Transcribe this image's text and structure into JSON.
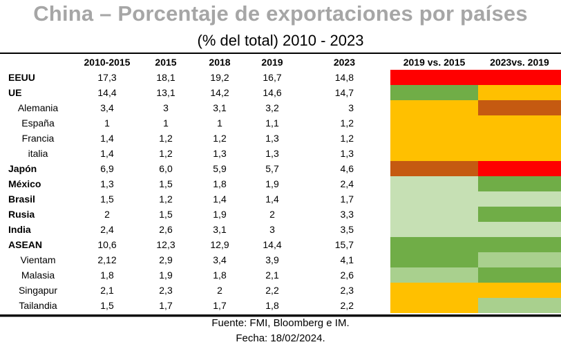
{
  "title": "China – Porcentaje de exportaciones por países",
  "subtitle": "(% del total) 2010 - 2023",
  "columns": [
    "",
    "2010-2015",
    "2015",
    "2018",
    "2019",
    "2023",
    "",
    "2019 vs. 2015",
    "2023vs. 2019"
  ],
  "colors": {
    "red": "#ff0000",
    "brown": "#c55a11",
    "amber": "#ffc000",
    "green": "#70ad47",
    "light_green": "#a9d08e",
    "pale_green": "#c6e0b4"
  },
  "chart_data": {
    "type": "table",
    "title": "China – Porcentaje de exportaciones por países",
    "subtitle": "(% del total) 2010 - 2023",
    "columns": [
      "2010-2015",
      "2015",
      "2018",
      "2019",
      "2023",
      "2019 vs. 2015",
      "2023vs. 2019"
    ],
    "rows": [
      {
        "label": "EEUU",
        "bold": true,
        "values": [
          "17,3",
          "18,1",
          "19,2",
          "16,7",
          "14,8"
        ],
        "flag_2019_vs_2015": "red",
        "flag_2023_vs_2019": "red"
      },
      {
        "label": "UE",
        "bold": true,
        "values": [
          "14,4",
          "13,1",
          "14,2",
          "14,6",
          "14,7"
        ],
        "flag_2019_vs_2015": "green",
        "flag_2023_vs_2019": "amber"
      },
      {
        "label": "Alemania",
        "bold": false,
        "values": [
          "3,4",
          "3",
          "3,1",
          "3,2",
          "3"
        ],
        "flag_2019_vs_2015": "amber",
        "flag_2023_vs_2019": "brown"
      },
      {
        "label": "España",
        "bold": false,
        "values": [
          "1",
          "1",
          "1",
          "1,1",
          "1,2"
        ],
        "flag_2019_vs_2015": "amber",
        "flag_2023_vs_2019": "amber"
      },
      {
        "label": "Francia",
        "bold": false,
        "values": [
          "1,4",
          "1,2",
          "1,2",
          "1,3",
          "1,2"
        ],
        "flag_2019_vs_2015": "amber",
        "flag_2023_vs_2019": "amber"
      },
      {
        "label": "italia",
        "bold": false,
        "values": [
          "1,4",
          "1,2",
          "1,3",
          "1,3",
          "1,3"
        ],
        "flag_2019_vs_2015": "amber",
        "flag_2023_vs_2019": "amber"
      },
      {
        "label": "Japón",
        "bold": true,
        "values": [
          "6,9",
          "6,0",
          "5,9",
          "5,7",
          "4,6"
        ],
        "flag_2019_vs_2015": "brown",
        "flag_2023_vs_2019": "red"
      },
      {
        "label": "México",
        "bold": true,
        "values": [
          "1,3",
          "1,5",
          "1,8",
          "1,9",
          "2,4"
        ],
        "flag_2019_vs_2015": "pale_green",
        "flag_2023_vs_2019": "green"
      },
      {
        "label": "Brasil",
        "bold": true,
        "values": [
          "1,5",
          "1,2",
          "1,4",
          "1,4",
          "1,7"
        ],
        "flag_2019_vs_2015": "pale_green",
        "flag_2023_vs_2019": "pale_green"
      },
      {
        "label": "Rusia",
        "bold": true,
        "values": [
          "2",
          "1,5",
          "1,9",
          "2",
          "3,3"
        ],
        "flag_2019_vs_2015": "pale_green",
        "flag_2023_vs_2019": "green"
      },
      {
        "label": "India",
        "bold": true,
        "values": [
          "2,4",
          "2,6",
          "3,1",
          "3",
          "3,5"
        ],
        "flag_2019_vs_2015": "pale_green",
        "flag_2023_vs_2019": "pale_green"
      },
      {
        "label": "ASEAN",
        "bold": true,
        "values": [
          "10,6",
          "12,3",
          "12,9",
          "14,4",
          "15,7"
        ],
        "flag_2019_vs_2015": "green",
        "flag_2023_vs_2019": "green"
      },
      {
        "label": "Vientam",
        "bold": false,
        "values": [
          "2,12",
          "2,9",
          "3,4",
          "3,9",
          "4,1"
        ],
        "flag_2019_vs_2015": "green",
        "flag_2023_vs_2019": "light_green"
      },
      {
        "label": "Malasia",
        "bold": false,
        "values": [
          "1,8",
          "1,9",
          "1,8",
          "2,1",
          "2,6"
        ],
        "flag_2019_vs_2015": "light_green",
        "flag_2023_vs_2019": "green"
      },
      {
        "label": "Singapur",
        "bold": false,
        "values": [
          "2,1",
          "2,3",
          "2",
          "2,2",
          "2,3"
        ],
        "flag_2019_vs_2015": "amber",
        "flag_2023_vs_2019": "amber"
      },
      {
        "label": "Tailandia",
        "bold": false,
        "values": [
          "1,5",
          "1,7",
          "1,7",
          "1,8",
          "2,2"
        ],
        "flag_2019_vs_2015": "amber",
        "flag_2023_vs_2019": "light_green"
      }
    ]
  },
  "footer": {
    "source": "Fuente: FMI, Bloomberg e IM.",
    "date": "Fecha: 18/02/2024."
  }
}
